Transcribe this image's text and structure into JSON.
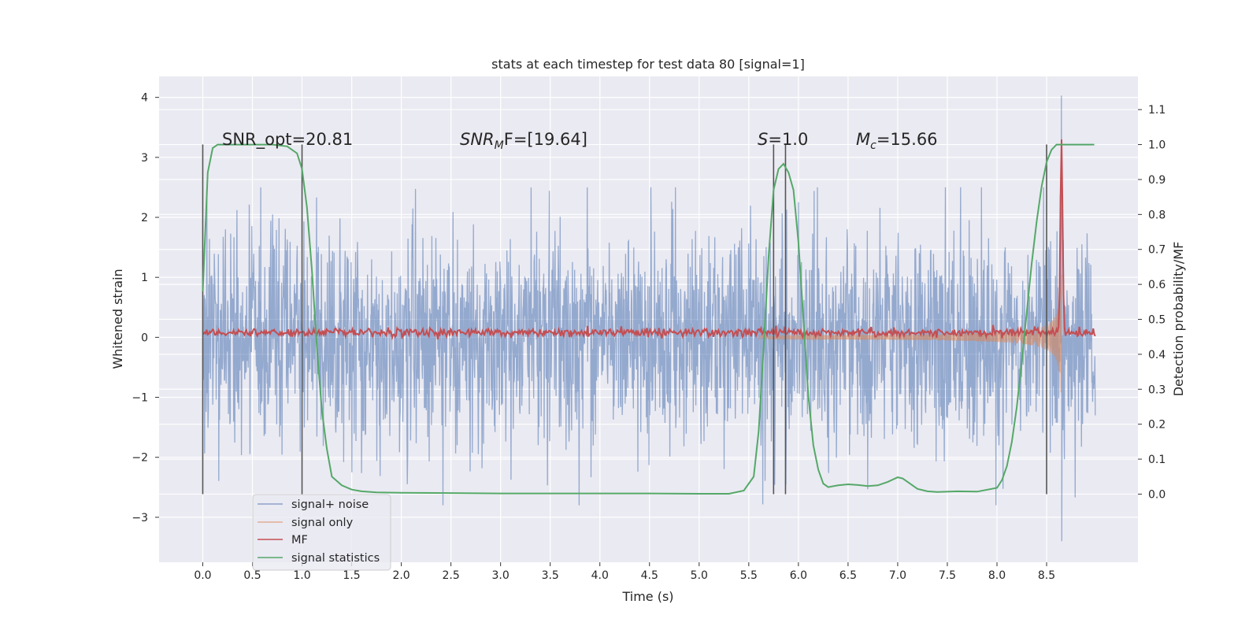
{
  "chart_data": {
    "type": "line",
    "title": "stats at each timestep for test data 80 [signal=1]",
    "xlabel": "Time (s)",
    "ylabel_left": "Whitened strain",
    "ylabel_right": "Detection probability/MF",
    "xlim": [
      -0.44,
      9.42
    ],
    "ylim_left": [
      -3.75,
      4.35
    ],
    "ylim_right": [
      -0.195,
      1.195
    ],
    "x_ticks": [
      0.0,
      0.5,
      1.0,
      1.5,
      2.0,
      2.5,
      3.0,
      3.5,
      4.0,
      4.5,
      5.0,
      5.5,
      6.0,
      6.5,
      7.0,
      7.5,
      8.0,
      8.5
    ],
    "x_tick_labels": [
      "0.0",
      "0.5",
      "1.0",
      "1.5",
      "2.0",
      "2.5",
      "3.0",
      "3.5",
      "4.0",
      "4.5",
      "5.0",
      "5.5",
      "6.0",
      "6.5",
      "7.0",
      "7.5",
      "8.0",
      "8.5"
    ],
    "y_left_ticks": [
      4,
      3,
      2,
      1,
      0,
      -1,
      -2,
      -3
    ],
    "y_left_tick_labels": [
      "4",
      "3",
      "2",
      "1",
      "0",
      "−1",
      "−2",
      "−3"
    ],
    "y_right_ticks": [
      1.1,
      1.0,
      0.9,
      0.8,
      0.7,
      0.6,
      0.5,
      0.4,
      0.3,
      0.2,
      0.1,
      0.0
    ],
    "y_right_tick_labels": [
      "1.1",
      "1.0",
      "0.9",
      "0.8",
      "0.7",
      "0.6",
      "0.5",
      "0.4",
      "0.3",
      "0.2",
      "0.1",
      "0.0"
    ],
    "annotations": {
      "snr_opt": "SNR_opt=20.81",
      "snr_mf_name": "SNR",
      "snr_mf_sub": "M",
      "snr_mf_rest": "F=[19.64]",
      "s_name": "S",
      "s_rest": "=1.0",
      "mc_name": "M",
      "mc_sub": "c",
      "mc_rest": "=15.66"
    },
    "vertical_markers_s": [
      0.0,
      1.0,
      5.75,
      5.87,
      8.5
    ],
    "series": [
      {
        "name": "signal+ noise",
        "color": "#4c72b0",
        "alpha": 0.55,
        "axis": "left",
        "description_stats": {
          "x_start": 0.0,
          "x_end": 8.99,
          "typical_abs": 1.1,
          "max": 4.03,
          "min": -3.4
        }
      },
      {
        "name": "signal only",
        "color": "#dd8452",
        "alpha": 0.55,
        "axis": "left",
        "chirp": {
          "start": 5.6,
          "peak_time": 8.65,
          "peak_amplitude": 3.4,
          "end": 8.66
        }
      },
      {
        "name": "MF",
        "color": "#c44e52",
        "axis": "left",
        "baseline": 0.08,
        "peak": {
          "t": 8.65,
          "value": 3.3
        }
      },
      {
        "name": "signal statistics",
        "color": "#55a868",
        "axis": "right",
        "x": [
          0.0,
          0.05,
          0.1,
          0.15,
          0.2,
          0.3,
          0.5,
          0.7,
          0.85,
          0.95,
          1.0,
          1.05,
          1.1,
          1.15,
          1.2,
          1.25,
          1.3,
          1.4,
          1.5,
          1.6,
          1.75,
          2.0,
          2.5,
          3.0,
          3.5,
          4.0,
          4.5,
          5.0,
          5.3,
          5.45,
          5.55,
          5.6,
          5.65,
          5.7,
          5.75,
          5.8,
          5.85,
          5.9,
          5.95,
          6.0,
          6.05,
          6.1,
          6.15,
          6.2,
          6.25,
          6.3,
          6.4,
          6.5,
          6.6,
          6.7,
          6.8,
          6.9,
          7.0,
          7.05,
          7.1,
          7.2,
          7.3,
          7.4,
          7.6,
          7.8,
          8.0,
          8.05,
          8.1,
          8.15,
          8.2,
          8.25,
          8.3,
          8.35,
          8.4,
          8.45,
          8.5,
          8.55,
          8.6,
          8.7,
          8.8,
          8.9,
          8.98
        ],
        "y": [
          0.58,
          0.92,
          0.99,
          1.0,
          1.0,
          1.0,
          1.0,
          1.0,
          0.995,
          0.975,
          0.93,
          0.82,
          0.64,
          0.42,
          0.24,
          0.13,
          0.05,
          0.025,
          0.013,
          0.008,
          0.005,
          0.004,
          0.003,
          0.002,
          0.002,
          0.002,
          0.002,
          0.001,
          0.001,
          0.01,
          0.05,
          0.18,
          0.42,
          0.68,
          0.87,
          0.93,
          0.945,
          0.92,
          0.87,
          0.72,
          0.5,
          0.28,
          0.14,
          0.07,
          0.03,
          0.02,
          0.025,
          0.028,
          0.026,
          0.023,
          0.025,
          0.035,
          0.048,
          0.045,
          0.035,
          0.015,
          0.008,
          0.006,
          0.008,
          0.007,
          0.018,
          0.04,
          0.08,
          0.15,
          0.25,
          0.38,
          0.52,
          0.66,
          0.78,
          0.88,
          0.95,
          0.985,
          1.0,
          1.0,
          1.0,
          1.0,
          1.0
        ]
      }
    ],
    "legend": {
      "position": "lower-left",
      "entries": [
        "signal+ noise",
        "signal only",
        "MF",
        "signal statistics"
      ]
    }
  }
}
